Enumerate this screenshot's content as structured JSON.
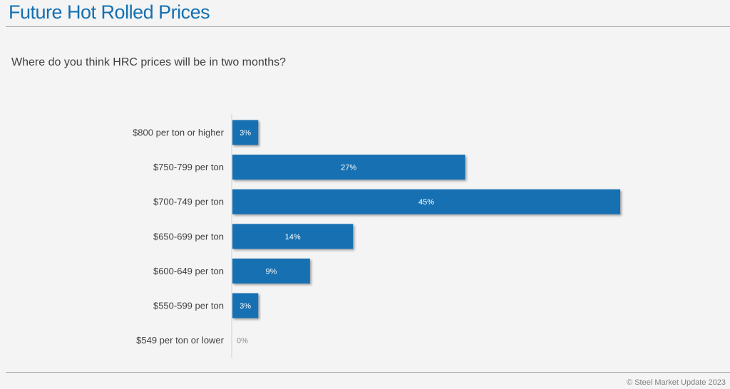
{
  "header": {
    "title": "Future Hot Rolled Prices",
    "question": "Where do you think HRC prices will be in two months?"
  },
  "footer": {
    "copyright": "© Steel Market Update 2023"
  },
  "colors": {
    "bar": "#1470b1",
    "title": "#1470b1"
  },
  "chart_data": {
    "type": "bar",
    "orientation": "horizontal",
    "categories": [
      "$800 per ton or higher",
      "$750-799 per ton",
      "$700-749 per ton",
      "$650-699 per ton",
      "$600-649 per ton",
      "$550-599 per ton",
      "$549 per ton or lower"
    ],
    "values": [
      3,
      27,
      45,
      14,
      9,
      3,
      0
    ],
    "value_labels": [
      "3%",
      "27%",
      "45%",
      "14%",
      "9%",
      "3%",
      "0%"
    ],
    "grid": false,
    "legend": "none"
  }
}
